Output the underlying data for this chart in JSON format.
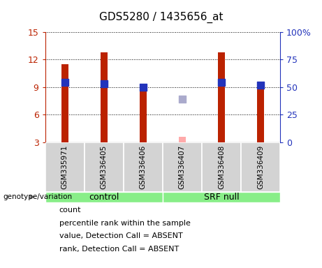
{
  "title": "GDS5280 / 1435656_at",
  "samples": [
    "GSM335971",
    "GSM336405",
    "GSM336406",
    "GSM336407",
    "GSM336408",
    "GSM336409"
  ],
  "count_values": [
    11.5,
    12.8,
    8.85,
    null,
    12.8,
    9.0
  ],
  "count_absent": [
    null,
    null,
    null,
    3.55,
    null,
    null
  ],
  "percentile_values": [
    9.5,
    9.4,
    9.0,
    null,
    9.5,
    9.2
  ],
  "percentile_absent": [
    null,
    null,
    null,
    7.7,
    null,
    null
  ],
  "ylim_left": [
    3,
    15
  ],
  "ylim_right": [
    0,
    100
  ],
  "yticks_left": [
    3,
    6,
    9,
    12,
    15
  ],
  "ytick_labels_right": [
    "0",
    "25",
    "50",
    "75",
    "100%"
  ],
  "bar_color": "#bb2200",
  "bar_absent_color": "#ffaaaa",
  "dot_color": "#2233bb",
  "dot_absent_color": "#aaaacc",
  "axis_left_color": "#bb2200",
  "axis_right_color": "#2233bb",
  "bar_width": 0.18,
  "legend_items": [
    {
      "label": "count",
      "color": "#bb2200"
    },
    {
      "label": "percentile rank within the sample",
      "color": "#2233bb"
    },
    {
      "label": "value, Detection Call = ABSENT",
      "color": "#ffaaaa"
    },
    {
      "label": "rank, Detection Call = ABSENT",
      "color": "#aaaacc"
    }
  ]
}
